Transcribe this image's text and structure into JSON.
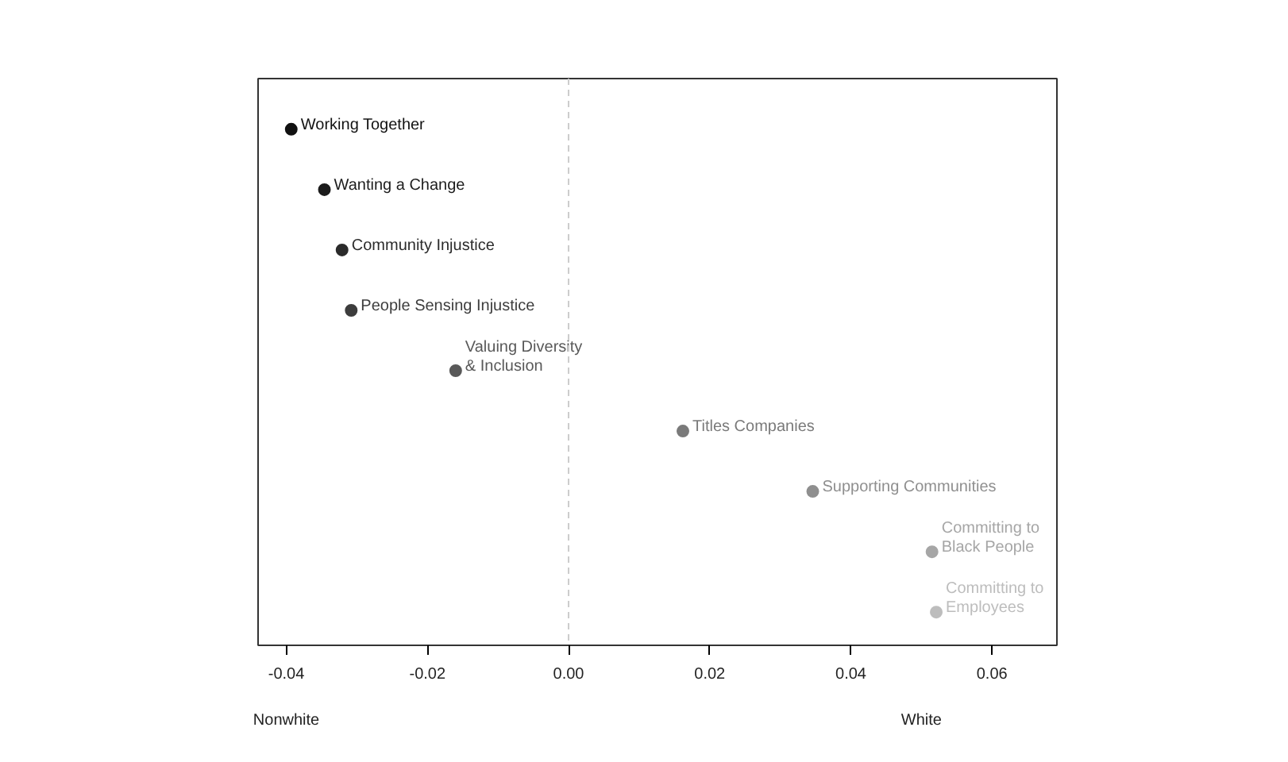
{
  "chart_data": {
    "type": "scatter",
    "orientation": "horizontal",
    "categories": [
      "Working Together",
      "Wanting a Change",
      "Community Injustice",
      "People Sensing Injustice",
      "Valuing Diversity\n& Inclusion",
      "Titles Companies",
      "Supporting Communities",
      "Committing to\nBlack People",
      "Committing to\nEmployees"
    ],
    "values": [
      -0.0393,
      -0.0346,
      -0.0321,
      -0.0308,
      -0.016,
      0.0162,
      0.0346,
      0.0515,
      0.0521
    ],
    "colors": [
      "#111111",
      "#1c1c1c",
      "#2b2b2b",
      "#3d3d3d",
      "#595959",
      "#7a7a7a",
      "#8f8f8f",
      "#a6a6a6",
      "#bdbdbd"
    ],
    "xlim": [
      -0.044,
      0.0692
    ],
    "xticks": [
      {
        "value": -0.04,
        "label": "-0.04"
      },
      {
        "value": -0.02,
        "label": "-0.02"
      },
      {
        "value": 0,
        "label": "0.00"
      },
      {
        "value": 0.02,
        "label": "0.02"
      },
      {
        "value": 0.04,
        "label": "0.04"
      },
      {
        "value": 0.06,
        "label": "0.06"
      }
    ],
    "tick_labels": "x",
    "grid": false,
    "marker": "circle",
    "ref_lines": [
      {
        "axis": "x",
        "value": 0,
        "color": "#cccccc",
        "line_style": "dashed"
      }
    ],
    "annotations": [
      "Nonwhite",
      "White"
    ]
  }
}
